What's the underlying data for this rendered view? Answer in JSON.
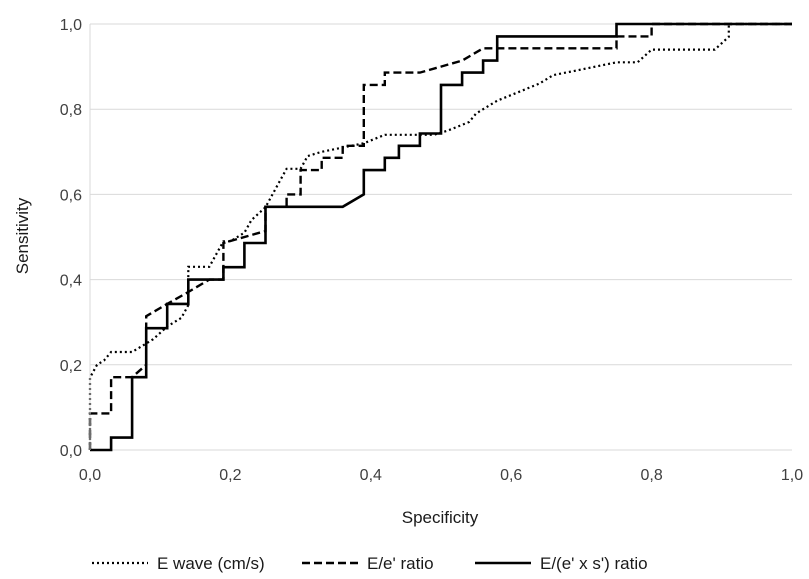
{
  "chart_data": {
    "type": "line",
    "title": "",
    "xlabel": "Specificity",
    "ylabel": "Sensitivity",
    "xlim": [
      0,
      1
    ],
    "ylim": [
      0,
      1
    ],
    "xticks": [
      "0,0",
      "0,2",
      "0,4",
      "0,6",
      "0,8",
      "1,0"
    ],
    "yticks": [
      "0,0",
      "0,2",
      "0,4",
      "0,6",
      "0,8",
      "1,0"
    ],
    "grid": "horizontal",
    "legend_position": "bottom",
    "series": [
      {
        "name": "E wave (cm/s)",
        "style": "dotted",
        "color": "#000000",
        "x": [
          0.0,
          0.0,
          0.01,
          0.02,
          0.03,
          0.06,
          0.08,
          0.09,
          0.11,
          0.13,
          0.14,
          0.14,
          0.17,
          0.19,
          0.2,
          0.22,
          0.23,
          0.25,
          0.26,
          0.27,
          0.28,
          0.3,
          0.31,
          0.33,
          0.36,
          0.39,
          0.42,
          0.45,
          0.49,
          0.51,
          0.54,
          0.55,
          0.56,
          0.58,
          0.61,
          0.64,
          0.66,
          0.69,
          0.72,
          0.75,
          0.78,
          0.8,
          0.83,
          0.86,
          0.89,
          0.91,
          0.91,
          0.95,
          1.0
        ],
        "y": [
          0.0,
          0.17,
          0.2,
          0.21,
          0.23,
          0.23,
          0.25,
          0.26,
          0.29,
          0.31,
          0.34,
          0.43,
          0.43,
          0.49,
          0.49,
          0.51,
          0.54,
          0.57,
          0.6,
          0.63,
          0.66,
          0.66,
          0.69,
          0.7,
          0.71,
          0.72,
          0.74,
          0.74,
          0.74,
          0.75,
          0.77,
          0.79,
          0.8,
          0.82,
          0.84,
          0.86,
          0.88,
          0.89,
          0.9,
          0.91,
          0.91,
          0.94,
          0.94,
          0.94,
          0.94,
          0.97,
          1.0,
          1.0,
          1.0
        ]
      },
      {
        "name": "E/e' ratio",
        "style": "dashed",
        "color": "#000000",
        "x": [
          0.0,
          0.0,
          0.03,
          0.03,
          0.06,
          0.08,
          0.08,
          0.11,
          0.11,
          0.14,
          0.17,
          0.19,
          0.19,
          0.25,
          0.25,
          0.28,
          0.28,
          0.3,
          0.3,
          0.33,
          0.33,
          0.36,
          0.36,
          0.39,
          0.39,
          0.42,
          0.42,
          0.47,
          0.5,
          0.53,
          0.56,
          0.75,
          0.75,
          0.8,
          0.8,
          1.0
        ],
        "y": [
          0.0,
          0.086,
          0.086,
          0.171,
          0.171,
          0.2,
          0.314,
          0.343,
          0.343,
          0.371,
          0.4,
          0.4,
          0.486,
          0.514,
          0.571,
          0.571,
          0.6,
          0.6,
          0.657,
          0.657,
          0.686,
          0.686,
          0.714,
          0.714,
          0.857,
          0.857,
          0.886,
          0.886,
          0.9,
          0.914,
          0.943,
          0.943,
          0.971,
          0.971,
          1.0,
          1.0
        ]
      },
      {
        "name": "E/(e' x s') ratio",
        "style": "solid",
        "color": "#000000",
        "x": [
          0.0,
          0.03,
          0.03,
          0.06,
          0.06,
          0.08,
          0.08,
          0.11,
          0.11,
          0.14,
          0.14,
          0.19,
          0.19,
          0.22,
          0.22,
          0.25,
          0.25,
          0.36,
          0.39,
          0.39,
          0.42,
          0.42,
          0.44,
          0.44,
          0.47,
          0.47,
          0.5,
          0.5,
          0.53,
          0.53,
          0.56,
          0.56,
          0.58,
          0.58,
          0.75,
          0.75,
          1.0
        ],
        "y": [
          0.0,
          0.0,
          0.029,
          0.029,
          0.171,
          0.171,
          0.286,
          0.286,
          0.343,
          0.343,
          0.4,
          0.4,
          0.429,
          0.429,
          0.486,
          0.486,
          0.571,
          0.571,
          0.6,
          0.657,
          0.657,
          0.686,
          0.686,
          0.714,
          0.714,
          0.743,
          0.743,
          0.857,
          0.857,
          0.886,
          0.886,
          0.914,
          0.914,
          0.971,
          0.971,
          1.0,
          1.0
        ]
      }
    ]
  }
}
